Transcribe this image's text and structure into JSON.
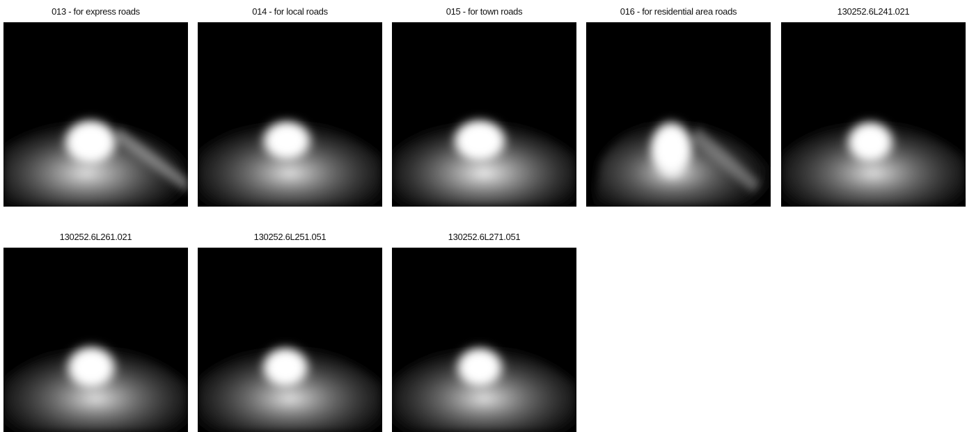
{
  "gallery": {
    "items": [
      {
        "title": "013 - for express roads",
        "variant": "express"
      },
      {
        "title": "014 - for local roads",
        "variant": "local"
      },
      {
        "title": "015 - for town roads",
        "variant": "town"
      },
      {
        "title": "016 - for residential area roads",
        "variant": "residential"
      },
      {
        "title": "130252.6L241.021",
        "variant": "standard"
      },
      {
        "title": "130252.6L261.021",
        "variant": "standard"
      },
      {
        "title": "130252.6L251.051",
        "variant": "standard"
      },
      {
        "title": "130252.6L271.051",
        "variant": "standard"
      }
    ]
  }
}
